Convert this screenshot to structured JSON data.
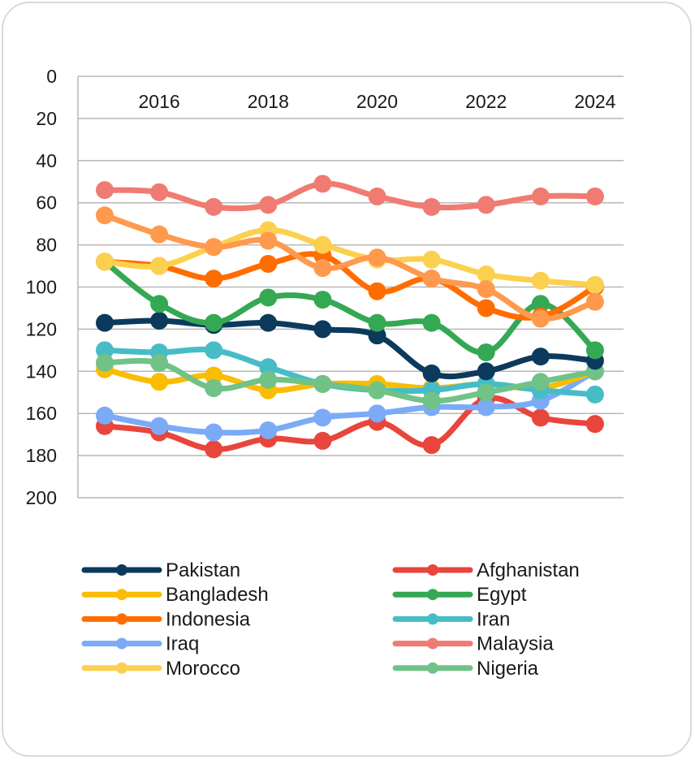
{
  "chart_data": {
    "type": "line",
    "title": "",
    "xlabel": "",
    "ylabel": "",
    "x": [
      2015,
      2016,
      2017,
      2018,
      2019,
      2020,
      2021,
      2022,
      2023,
      2024
    ],
    "x_tick_labels": [
      "2016",
      "2018",
      "2020",
      "2022",
      "2024"
    ],
    "y_tick_labels": [
      "0",
      "20",
      "40",
      "60",
      "80",
      "100",
      "120",
      "140",
      "160",
      "180",
      "200"
    ],
    "ylim": [
      0,
      200
    ],
    "y_inverted": true,
    "x_axis_position": "top",
    "grid": true,
    "legend_position": "bottom",
    "series": [
      {
        "name": "Pakistan",
        "color": "#0b3a5c",
        "values": [
          117,
          116,
          118,
          117,
          120,
          123,
          141,
          140,
          133,
          135
        ]
      },
      {
        "name": "Afghanistan",
        "color": "#e8453c",
        "values": [
          166,
          169,
          177,
          172,
          173,
          164,
          175,
          153,
          162,
          165
        ]
      },
      {
        "name": "Bangladesh",
        "color": "#fbbc04",
        "values": [
          139,
          145,
          142,
          149,
          146,
          146,
          148,
          146,
          148,
          140
        ]
      },
      {
        "name": "Egypt",
        "color": "#34a853",
        "values": [
          88,
          108,
          117,
          105,
          106,
          117,
          117,
          131,
          108,
          130
        ]
      },
      {
        "name": "Indonesia",
        "color": "#ff6d01",
        "values": [
          88,
          90,
          96,
          89,
          85,
          102,
          96,
          110,
          114,
          100
        ]
      },
      {
        "name": "Iran",
        "color": "#46bdc6",
        "values": [
          130,
          131,
          130,
          138,
          146,
          149,
          149,
          146,
          149,
          151
        ]
      },
      {
        "name": "Iraq",
        "color": "#7baaf7",
        "values": [
          161,
          166,
          169,
          168,
          162,
          160,
          157,
          157,
          154,
          140
        ]
      },
      {
        "name": "Malaysia",
        "color": "#f07b72",
        "values": [
          54,
          55,
          62,
          61,
          51,
          57,
          62,
          61,
          57,
          57
        ]
      },
      {
        "name": "Morocco",
        "color": "#fcd04f",
        "values": [
          88,
          90,
          81,
          73,
          80,
          87,
          87,
          94,
          97,
          99
        ]
      },
      {
        "name": "Nigeria",
        "color": "#71c287",
        "values": [
          136,
          136,
          148,
          144,
          146,
          149,
          154,
          150,
          145,
          140
        ]
      }
    ],
    "extra_overlays": [
      {
        "series": "Indonesia",
        "values": [
          null,
          null,
          null,
          null,
          null,
          null,
          null,
          null,
          null,
          107
        ],
        "color": "#ff994d"
      },
      {
        "series": "Indonesia-light",
        "values": [
          66,
          75,
          81,
          78,
          91,
          86,
          96,
          101,
          115,
          107
        ],
        "color": "#ff994d"
      }
    ]
  }
}
